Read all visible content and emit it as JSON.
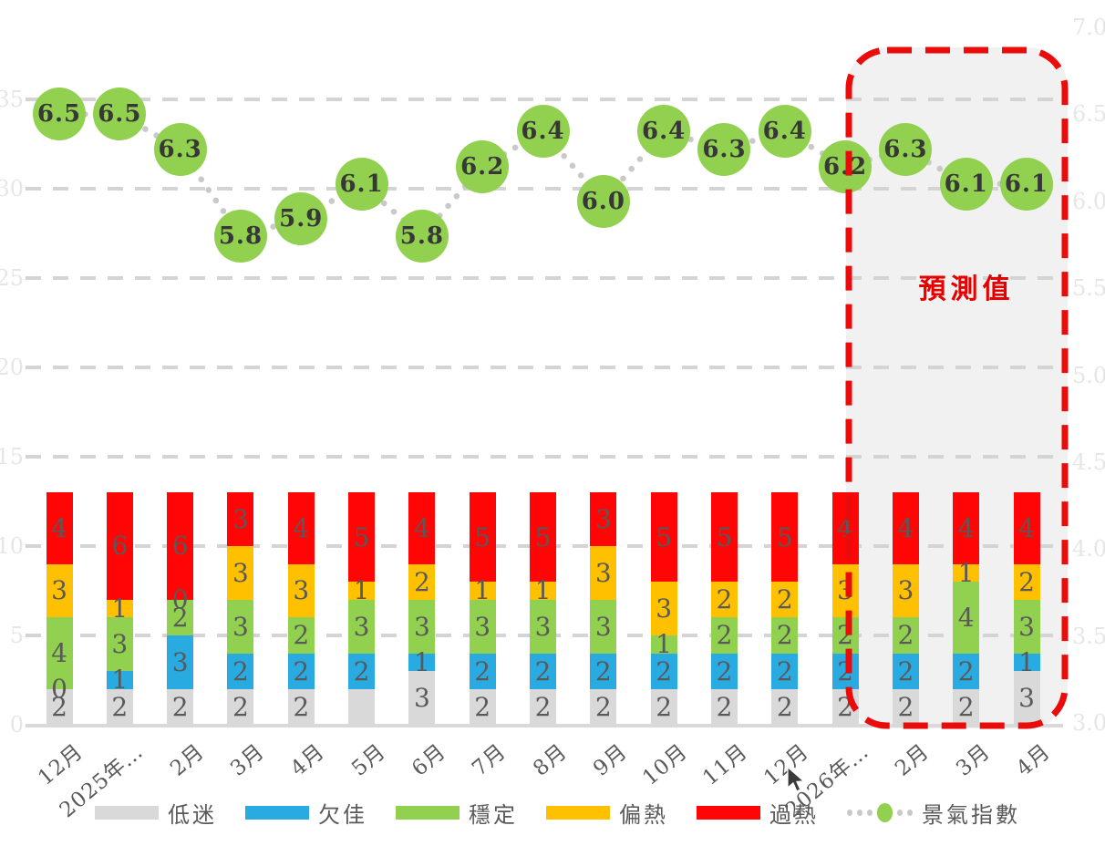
{
  "forecast": {
    "label": "預測值"
  },
  "left_axis": {
    "ticks": [
      "35",
      "30",
      "25",
      "20",
      "15",
      "10",
      "5",
      "0"
    ],
    "grid_values": [
      35,
      30,
      25,
      20,
      15,
      10,
      5
    ]
  },
  "right_axis": {
    "ticks": [
      "7.0",
      "6.5",
      "6.0",
      "5.5",
      "5.0",
      "4.5",
      "4.0",
      "3.5",
      "3.0"
    ]
  },
  "legend": {
    "items": [
      {
        "label": "低迷",
        "color": "#d9d9d9"
      },
      {
        "label": "欠佳",
        "color": "#29abe2"
      },
      {
        "label": "穩定",
        "color": "#92d050"
      },
      {
        "label": "偏熱",
        "color": "#ffc000"
      },
      {
        "label": "過熱",
        "color": "#ff0505"
      }
    ],
    "line_item": {
      "label": "景氣指數",
      "dot_color": "#c9c9c9",
      "marker_color": "#92d050"
    }
  },
  "chart_data": {
    "type": "bar",
    "subtype": "stacked-bars-with-line",
    "categories": [
      "12月",
      "2025年…",
      "2月",
      "3月",
      "4月",
      "5月",
      "6月",
      "7月",
      "8月",
      "9月",
      "10月",
      "11月",
      "12月",
      "2026年…",
      "2月",
      "3月",
      "4月"
    ],
    "series": [
      {
        "name": "低迷",
        "color": "#d9d9d9",
        "values": [
          2,
          2,
          2,
          2,
          2,
          2,
          3,
          2,
          2,
          2,
          2,
          2,
          2,
          2,
          2,
          2,
          3
        ]
      },
      {
        "name": "欠佳",
        "color": "#29abe2",
        "values": [
          0,
          1,
          3,
          2,
          2,
          2,
          1,
          2,
          2,
          2,
          2,
          2,
          2,
          2,
          2,
          2,
          1
        ]
      },
      {
        "name": "穩定",
        "color": "#92d050",
        "values": [
          4,
          3,
          2,
          3,
          2,
          3,
          3,
          3,
          3,
          3,
          1,
          2,
          2,
          2,
          2,
          4,
          3
        ]
      },
      {
        "name": "偏熱",
        "color": "#ffc000",
        "values": [
          3,
          1,
          0,
          3,
          3,
          1,
          2,
          1,
          1,
          3,
          3,
          2,
          2,
          3,
          3,
          1,
          2
        ]
      },
      {
        "name": "過熱",
        "color": "#ff0505",
        "values": [
          4,
          6,
          6,
          3,
          4,
          5,
          4,
          5,
          5,
          3,
          5,
          5,
          5,
          4,
          4,
          4,
          4
        ]
      }
    ],
    "hidden_segment_labels": [
      {
        "series": "低迷",
        "index": 5
      }
    ],
    "line_series": {
      "name": "景氣指數",
      "marker_color": "#92d050",
      "connector_color": "#c9c9c9",
      "values": [
        6.5,
        6.5,
        6.3,
        5.8,
        5.9,
        6.1,
        5.8,
        6.2,
        6.4,
        6.0,
        6.4,
        6.3,
        6.4,
        6.2,
        6.3,
        6.1,
        6.1
      ]
    },
    "left_axis_range": [
      0,
      37
    ],
    "right_axis_range": [
      3.0,
      7.0
    ],
    "grid": true,
    "legend_position": "bottom",
    "forecast_region": {
      "label": "預測值",
      "start_category": "2026年…",
      "start_index": 13,
      "border_color": "#ea0b0b",
      "fill_color": "#f1f1f1"
    }
  }
}
